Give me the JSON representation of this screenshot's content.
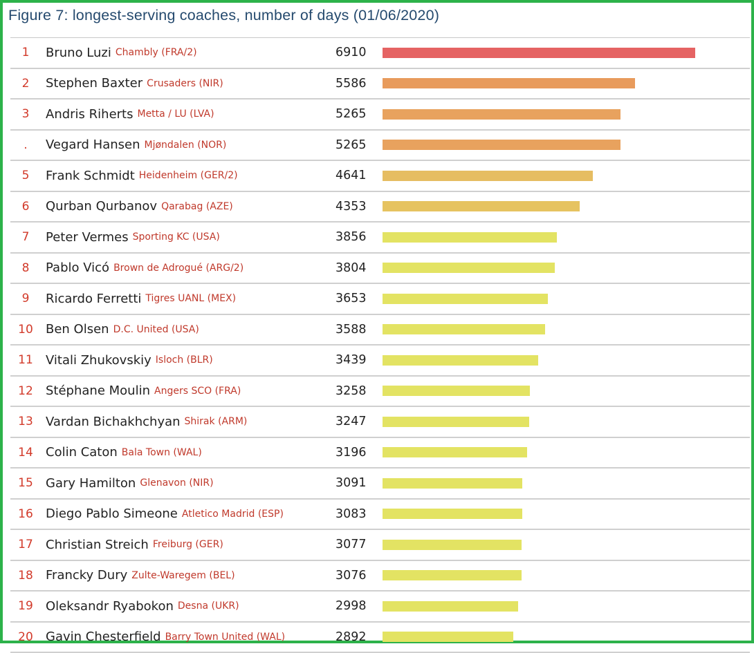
{
  "chart_data": {
    "type": "bar",
    "orientation": "horizontal",
    "title": "Figure 7: longest-serving coaches, number of days (01/06/2020)",
    "xlim": [
      0,
      8300
    ],
    "rows": [
      {
        "rank": "1",
        "coach": "Bruno Luzi",
        "club": "Chambly (FRA/2)",
        "days": 6910,
        "color": "#e56363"
      },
      {
        "rank": "2",
        "coach": "Stephen Baxter",
        "club": "Crusaders (NIR)",
        "days": 5586,
        "color": "#e89b5c"
      },
      {
        "rank": "3",
        "coach": "Andris Riherts",
        "club": "Metta / LU (LVA)",
        "days": 5265,
        "color": "#e8a25e"
      },
      {
        "rank": ".",
        "coach": "Vegard Hansen",
        "club": "Mjøndalen (NOR)",
        "days": 5265,
        "color": "#e8a25e"
      },
      {
        "rank": "5",
        "coach": "Frank Schmidt",
        "club": "Heidenheim (GER/2)",
        "days": 4641,
        "color": "#e6bd62"
      },
      {
        "rank": "6",
        "coach": "Qurban Qurbanov",
        "club": "Qarabag (AZE)",
        "days": 4353,
        "color": "#e6c360"
      },
      {
        "rank": "7",
        "coach": "Peter Vermes",
        "club": "Sporting KC (USA)",
        "days": 3856,
        "color": "#e3e363"
      },
      {
        "rank": "8",
        "coach": "Pablo Vicó",
        "club": "Brown de Adrogué (ARG/2)",
        "days": 3804,
        "color": "#e3e363"
      },
      {
        "rank": "9",
        "coach": "Ricardo Ferretti",
        "club": "Tigres UANL (MEX)",
        "days": 3653,
        "color": "#e3e363"
      },
      {
        "rank": "10",
        "coach": "Ben Olsen",
        "club": "D.C. United (USA)",
        "days": 3588,
        "color": "#e3e363"
      },
      {
        "rank": "11",
        "coach": "Vitali Zhukovskiy",
        "club": "Isloch (BLR)",
        "days": 3439,
        "color": "#e3e363"
      },
      {
        "rank": "12",
        "coach": "Stéphane Moulin",
        "club": "Angers SCO (FRA)",
        "days": 3258,
        "color": "#e3e363"
      },
      {
        "rank": "13",
        "coach": "Vardan Bichakhchyan",
        "club": "Shirak (ARM)",
        "days": 3247,
        "color": "#e3e363"
      },
      {
        "rank": "14",
        "coach": "Colin Caton",
        "club": "Bala Town (WAL)",
        "days": 3196,
        "color": "#e3e363"
      },
      {
        "rank": "15",
        "coach": "Gary Hamilton",
        "club": "Glenavon (NIR)",
        "days": 3091,
        "color": "#e3e363"
      },
      {
        "rank": "16",
        "coach": "Diego Pablo Simeone",
        "club": "Atletico Madrid (ESP)",
        "days": 3083,
        "color": "#e3e363"
      },
      {
        "rank": "17",
        "coach": "Christian Streich",
        "club": "Freiburg (GER)",
        "days": 3077,
        "color": "#e3e363"
      },
      {
        "rank": "18",
        "coach": "Francky Dury",
        "club": "Zulte-Waregem (BEL)",
        "days": 3076,
        "color": "#e3e363"
      },
      {
        "rank": "19",
        "coach": "Oleksandr Ryabokon",
        "club": "Desna (UKR)",
        "days": 2998,
        "color": "#e3e363"
      },
      {
        "rank": "20",
        "coach": "Gavin Chesterfield",
        "club": "Barry Town United (WAL)",
        "days": 2892,
        "color": "#e3e363"
      }
    ]
  }
}
